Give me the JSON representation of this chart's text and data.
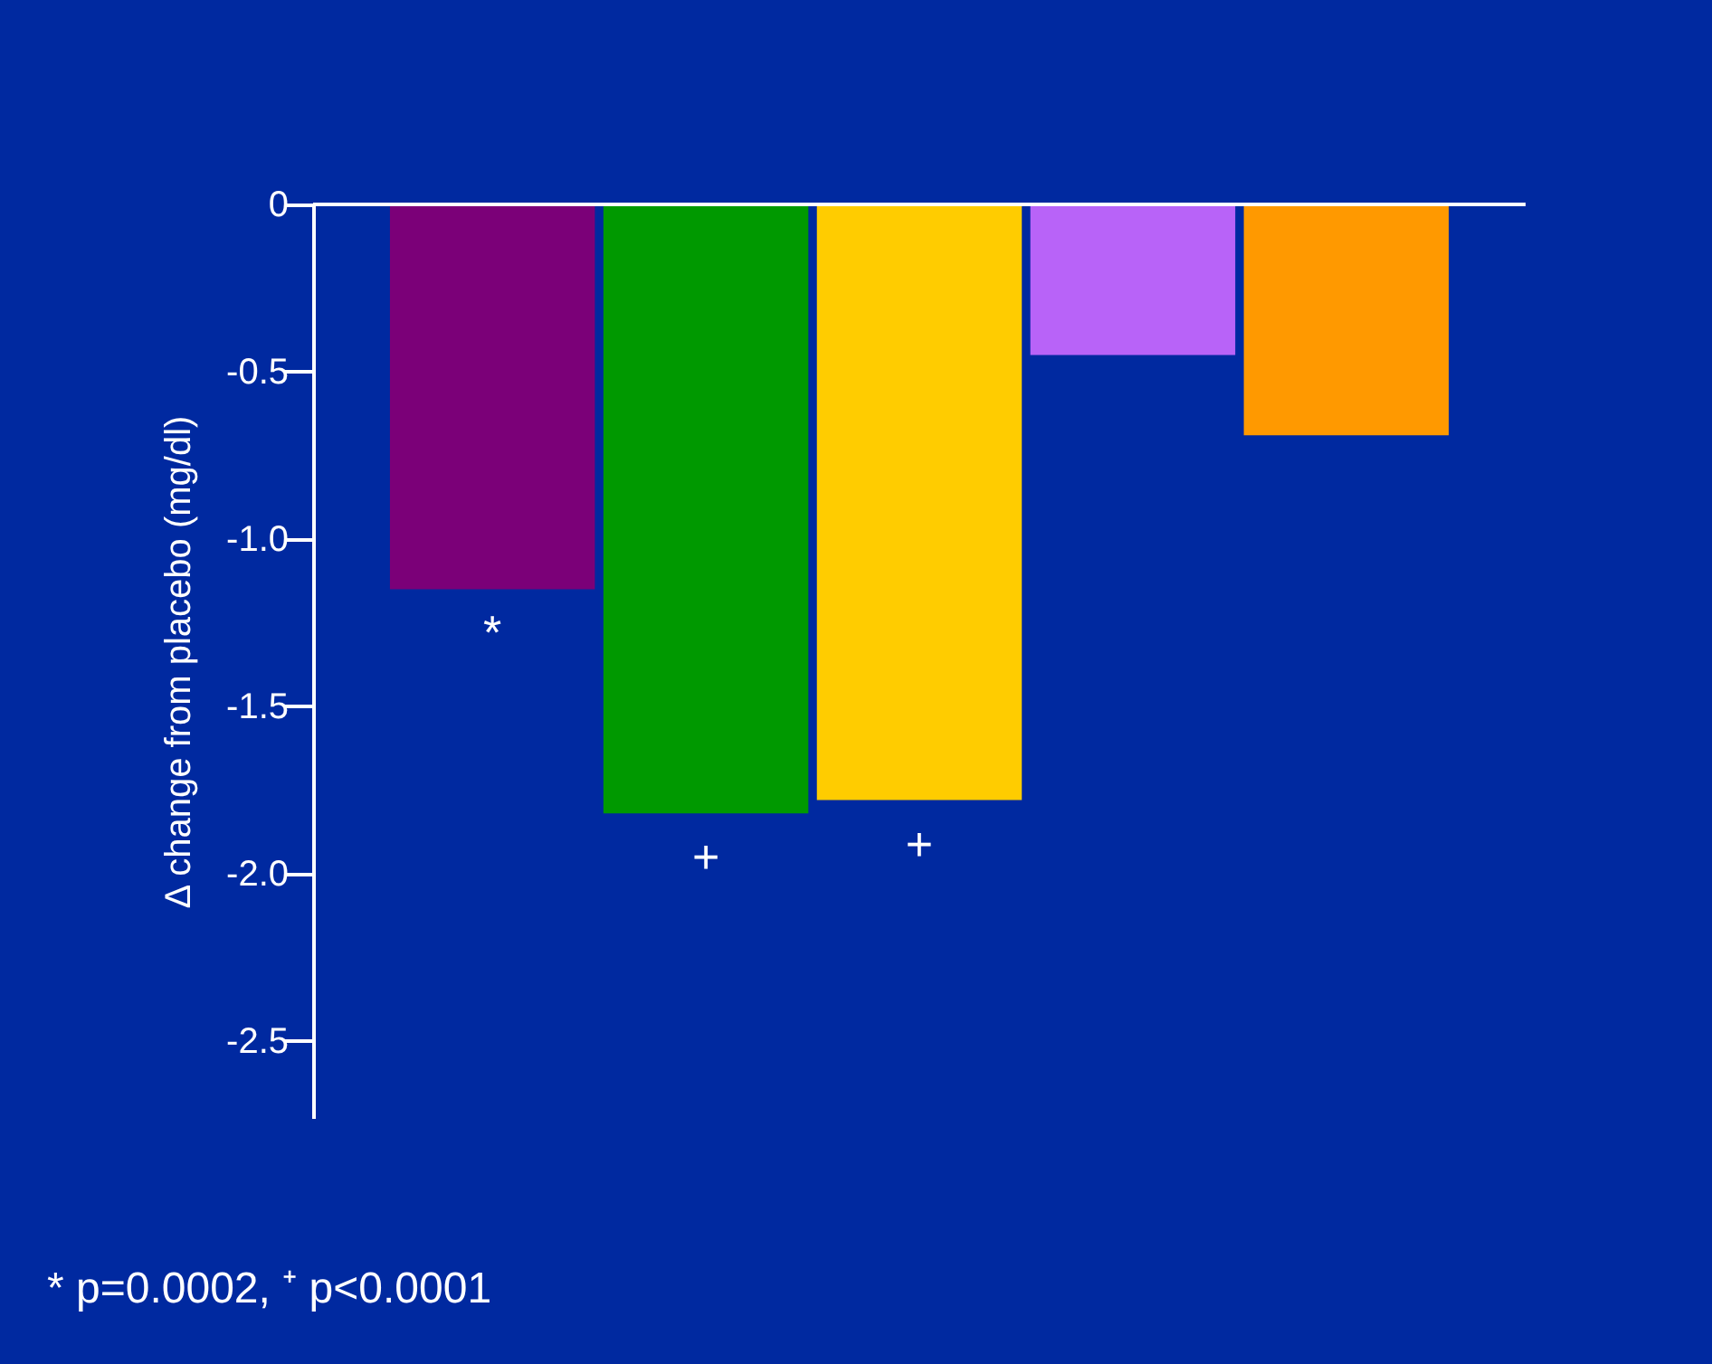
{
  "chart_data": {
    "type": "bar",
    "ylabel": "Δ change from placebo (mg/dl)",
    "categories": [
      null,
      null,
      null,
      null,
      null
    ],
    "values": [
      -1.15,
      -1.82,
      -1.78,
      -0.45,
      -0.69
    ],
    "colors": [
      "#7b0078",
      "#009900",
      "#ffcc00",
      "#b863f8",
      "#ff9900"
    ],
    "value_labels": [
      "*",
      "+",
      "+",
      null,
      null
    ],
    "ylim": [
      -2.73,
      0
    ],
    "yticks": [
      {
        "value": 0,
        "label": "0"
      },
      {
        "value": -0.5,
        "label": "-0.5"
      },
      {
        "value": -1.0,
        "label": "-1.0"
      },
      {
        "value": -1.5,
        "label": "-1.5"
      },
      {
        "value": -2.0,
        "label": "-2.0"
      },
      {
        "value": -2.5,
        "label": "-2.5"
      }
    ],
    "grid": false,
    "annotations": [
      "* p=0.0002, ⁺ p<0.0001"
    ]
  }
}
